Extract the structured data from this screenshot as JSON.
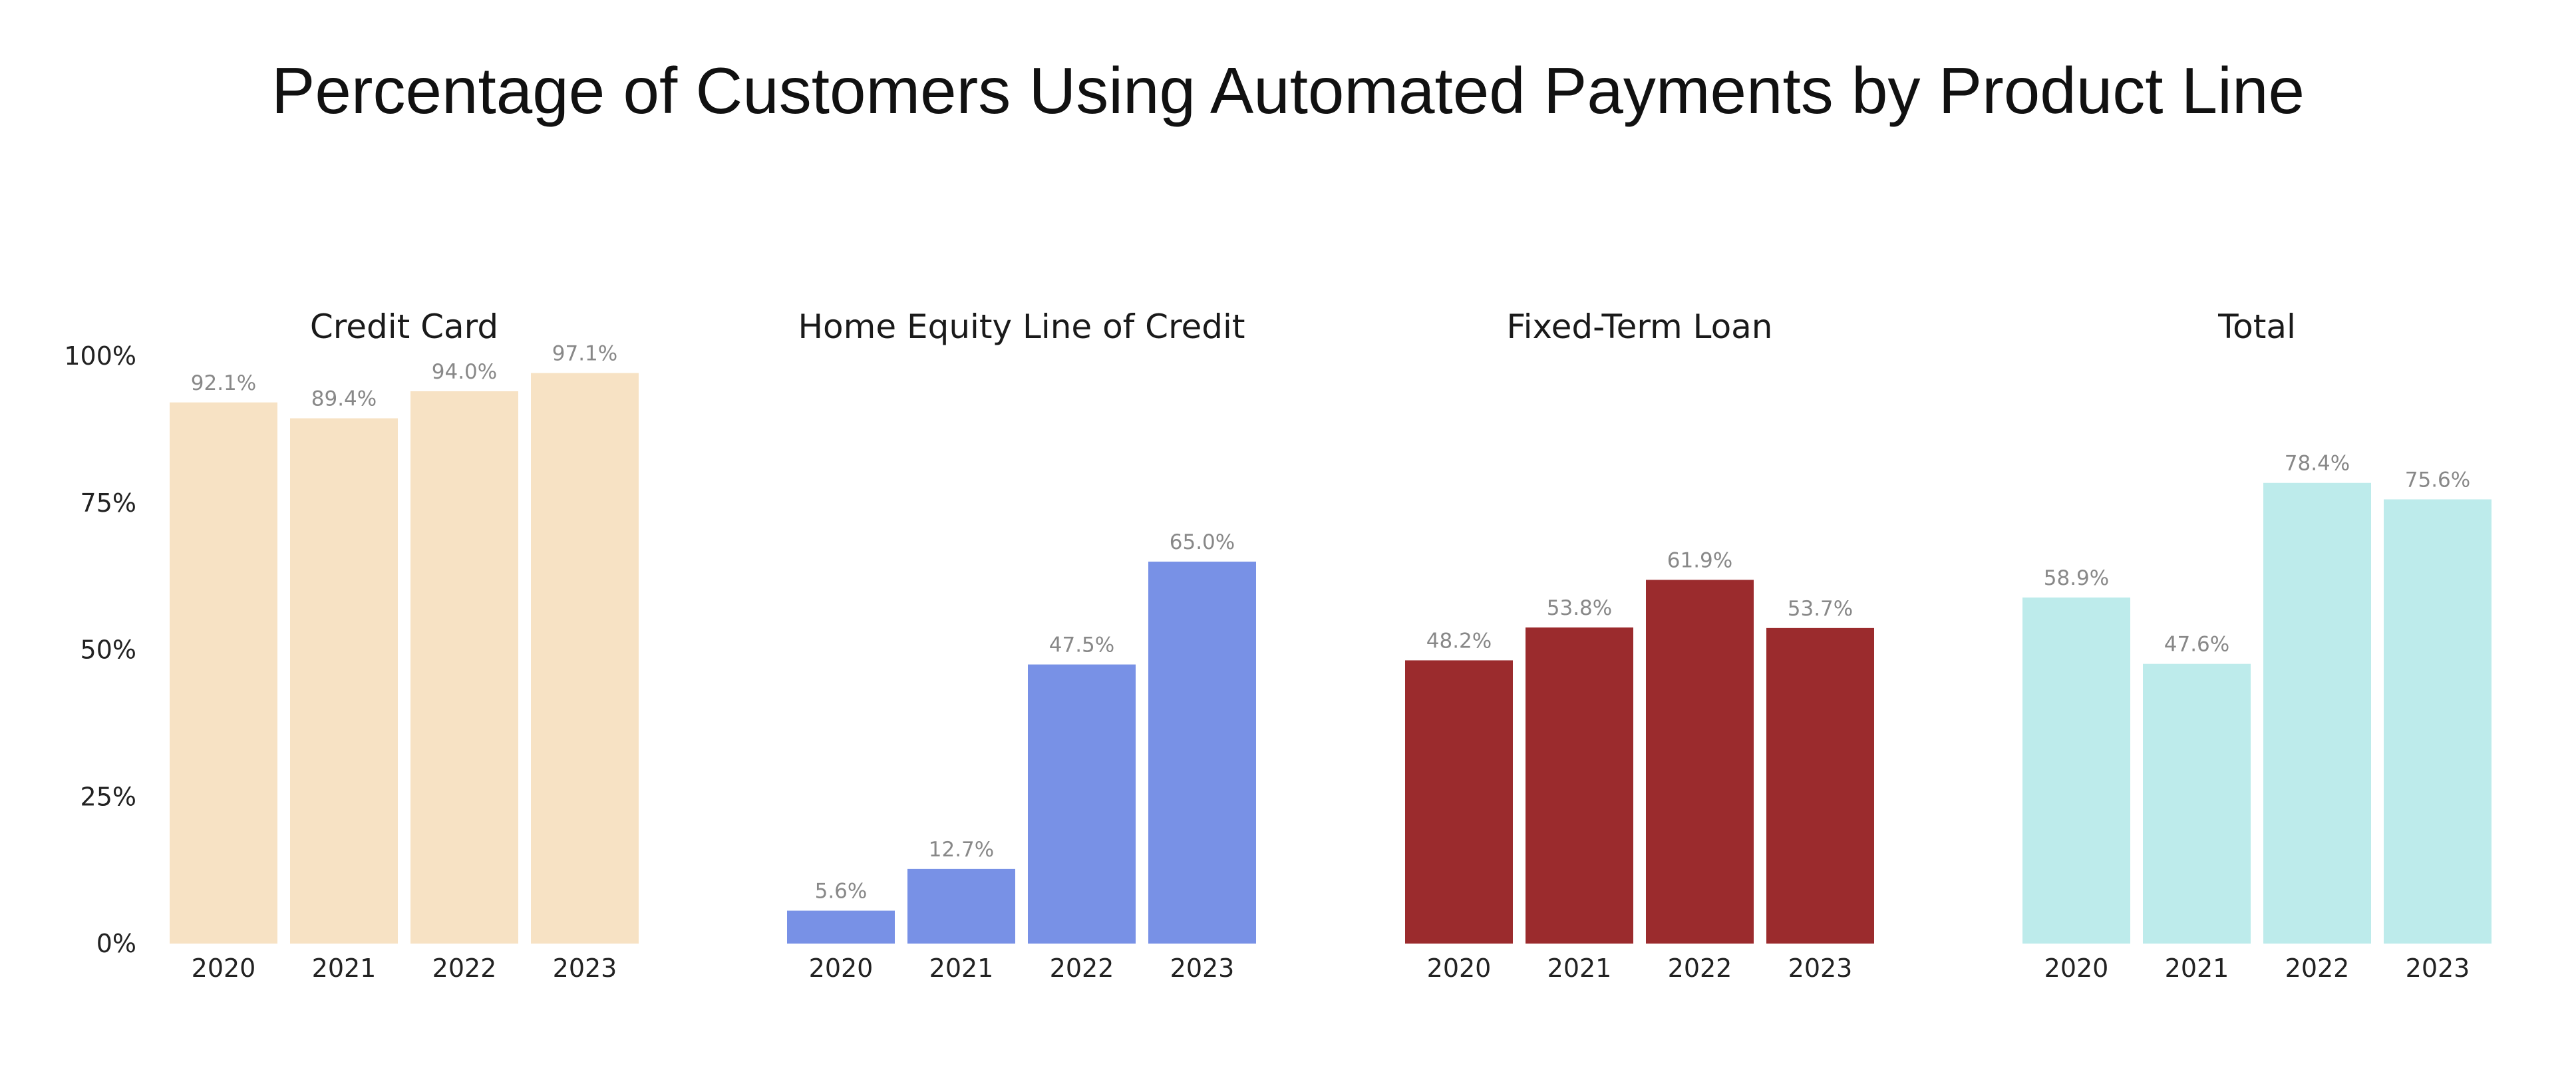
{
  "title": "Percentage of Customers Using Automated Payments by Product Line",
  "y_ticks": [
    "0%",
    "25%",
    "50%",
    "75%",
    "100%"
  ],
  "chart_data": [
    {
      "type": "bar",
      "title": "Credit Card",
      "categories": [
        "2020",
        "2021",
        "2022",
        "2023"
      ],
      "values": [
        92.1,
        89.4,
        94.0,
        97.1
      ],
      "labels": [
        "92.1%",
        "89.4%",
        "94.0%",
        "97.1%"
      ],
      "color": "#f7e2c4",
      "ylim": [
        0,
        100
      ],
      "grid": false
    },
    {
      "type": "bar",
      "title": "Home Equity Line of Credit",
      "categories": [
        "2020",
        "2021",
        "2022",
        "2023"
      ],
      "values": [
        5.6,
        12.7,
        47.5,
        65.0
      ],
      "labels": [
        "5.6%",
        "12.7%",
        "47.5%",
        "65.0%"
      ],
      "color": "#7891e6",
      "ylim": [
        0,
        100
      ],
      "grid": false
    },
    {
      "type": "bar",
      "title": "Fixed-Term Loan",
      "categories": [
        "2020",
        "2021",
        "2022",
        "2023"
      ],
      "values": [
        48.2,
        53.8,
        61.9,
        53.7
      ],
      "labels": [
        "48.2%",
        "53.8%",
        "61.9%",
        "53.7%"
      ],
      "color": "#9b2b2d",
      "ylim": [
        0,
        100
      ],
      "grid": false
    },
    {
      "type": "bar",
      "title": "Total",
      "categories": [
        "2020",
        "2021",
        "2022",
        "2023"
      ],
      "values": [
        58.9,
        47.6,
        78.4,
        75.6
      ],
      "labels": [
        "58.9%",
        "47.6%",
        "78.4%",
        "75.6%"
      ],
      "color": "#bdebeb",
      "ylim": [
        0,
        100
      ],
      "grid": false
    }
  ]
}
